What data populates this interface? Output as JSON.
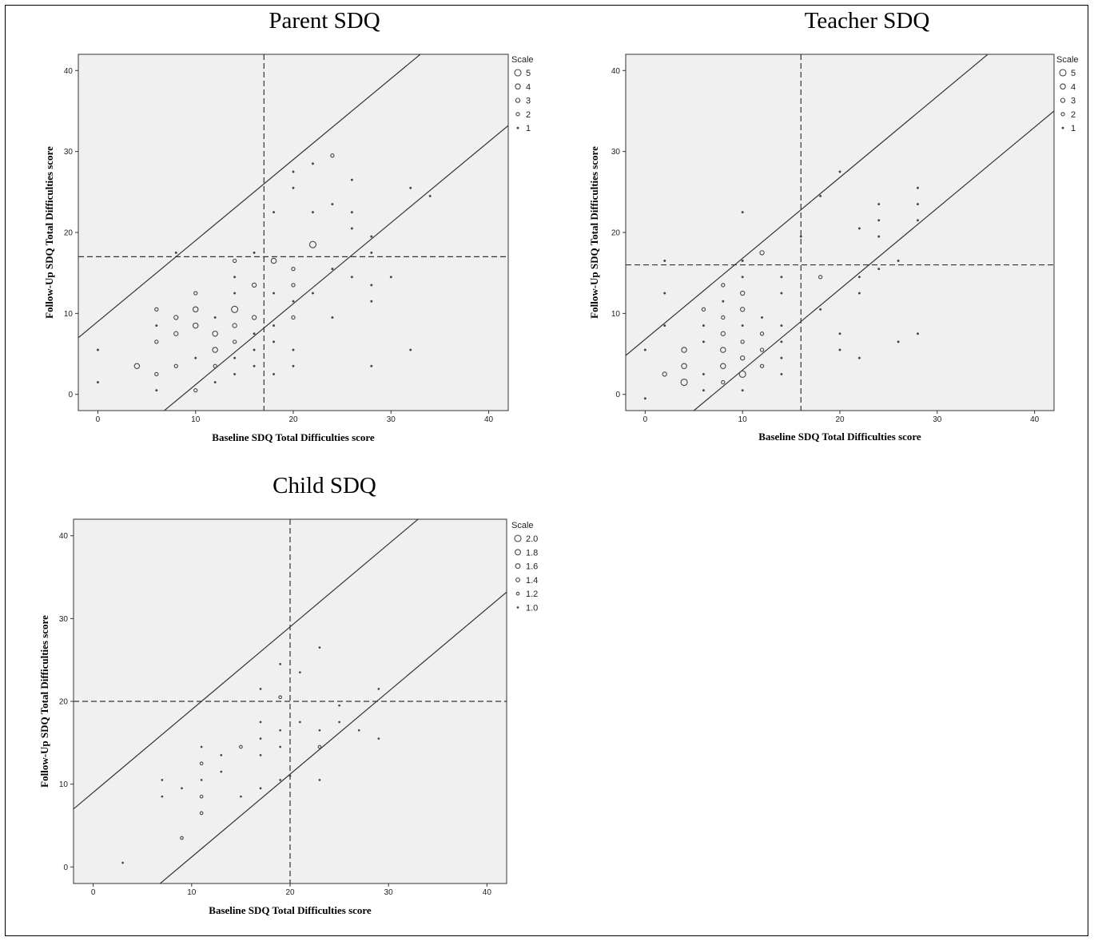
{
  "chart_data": [
    {
      "type": "scatter",
      "title": "Parent SDQ",
      "xlabel": "Baseline SDQ Total Difficulties score",
      "ylabel": "Follow-Up SDQ Total Difficulties score",
      "xlim": [
        -2,
        42
      ],
      "ylim": [
        -2,
        42
      ],
      "xticks": [
        0,
        10,
        20,
        30,
        40
      ],
      "yticks": [
        0,
        10,
        20,
        30,
        40
      ],
      "reference_lines": {
        "x": 17,
        "y": 17,
        "style": "dashed"
      },
      "limit_lines": [
        {
          "slope": 1,
          "intercept": 9
        },
        {
          "slope": 1,
          "intercept": -8.8
        }
      ],
      "legend": {
        "title": "Scale",
        "placement": "right",
        "labels": [
          "5",
          "4",
          "3",
          "2",
          "1"
        ]
      },
      "points": [
        {
          "x": 0,
          "y": 5.5,
          "scale": 1
        },
        {
          "x": 0,
          "y": 1.5,
          "scale": 1
        },
        {
          "x": 4,
          "y": 3.5,
          "scale": 4
        },
        {
          "x": 6,
          "y": 10.5,
          "scale": 2
        },
        {
          "x": 6,
          "y": 8.5,
          "scale": 1
        },
        {
          "x": 6,
          "y": 6.5,
          "scale": 2
        },
        {
          "x": 6,
          "y": 2.5,
          "scale": 2
        },
        {
          "x": 6,
          "y": 0.5,
          "scale": 1
        },
        {
          "x": 8,
          "y": 17.5,
          "scale": 1
        },
        {
          "x": 8,
          "y": 9.5,
          "scale": 3
        },
        {
          "x": 8,
          "y": 7.5,
          "scale": 3
        },
        {
          "x": 8,
          "y": 3.5,
          "scale": 2
        },
        {
          "x": 10,
          "y": 12.5,
          "scale": 2
        },
        {
          "x": 10,
          "y": 10.5,
          "scale": 4
        },
        {
          "x": 10,
          "y": 8.5,
          "scale": 4
        },
        {
          "x": 10,
          "y": 4.5,
          "scale": 1
        },
        {
          "x": 10,
          "y": 0.5,
          "scale": 2
        },
        {
          "x": 12,
          "y": 9.5,
          "scale": 1
        },
        {
          "x": 12,
          "y": 7.5,
          "scale": 4
        },
        {
          "x": 12,
          "y": 5.5,
          "scale": 4
        },
        {
          "x": 12,
          "y": 3.5,
          "scale": 2
        },
        {
          "x": 12,
          "y": 1.5,
          "scale": 1
        },
        {
          "x": 14,
          "y": 16.5,
          "scale": 2
        },
        {
          "x": 14,
          "y": 14.5,
          "scale": 1
        },
        {
          "x": 14,
          "y": 12.5,
          "scale": 1
        },
        {
          "x": 14,
          "y": 10.5,
          "scale": 5
        },
        {
          "x": 14,
          "y": 8.5,
          "scale": 3
        },
        {
          "x": 14,
          "y": 6.5,
          "scale": 2
        },
        {
          "x": 14,
          "y": 4.5,
          "scale": 1
        },
        {
          "x": 14,
          "y": 2.5,
          "scale": 1
        },
        {
          "x": 16,
          "y": 17.5,
          "scale": 1
        },
        {
          "x": 16,
          "y": 13.5,
          "scale": 3
        },
        {
          "x": 16,
          "y": 9.5,
          "scale": 3
        },
        {
          "x": 16,
          "y": 7.5,
          "scale": 1
        },
        {
          "x": 16,
          "y": 5.5,
          "scale": 1
        },
        {
          "x": 16,
          "y": 3.5,
          "scale": 1
        },
        {
          "x": 18,
          "y": 22.5,
          "scale": 1
        },
        {
          "x": 18,
          "y": 16.5,
          "scale": 4
        },
        {
          "x": 18,
          "y": 12.5,
          "scale": 1
        },
        {
          "x": 18,
          "y": 8.5,
          "scale": 1
        },
        {
          "x": 18,
          "y": 6.5,
          "scale": 1
        },
        {
          "x": 18,
          "y": 2.5,
          "scale": 1
        },
        {
          "x": 20,
          "y": 27.5,
          "scale": 1
        },
        {
          "x": 20,
          "y": 25.5,
          "scale": 1
        },
        {
          "x": 20,
          "y": 15.5,
          "scale": 2
        },
        {
          "x": 20,
          "y": 13.5,
          "scale": 2
        },
        {
          "x": 20,
          "y": 11.5,
          "scale": 1
        },
        {
          "x": 20,
          "y": 9.5,
          "scale": 2
        },
        {
          "x": 20,
          "y": 5.5,
          "scale": 1
        },
        {
          "x": 20,
          "y": 3.5,
          "scale": 1
        },
        {
          "x": 22,
          "y": 28.5,
          "scale": 1
        },
        {
          "x": 22,
          "y": 22.5,
          "scale": 1
        },
        {
          "x": 22,
          "y": 18.5,
          "scale": 5
        },
        {
          "x": 22,
          "y": 12.5,
          "scale": 1
        },
        {
          "x": 24,
          "y": 29.5,
          "scale": 2
        },
        {
          "x": 24,
          "y": 23.5,
          "scale": 1
        },
        {
          "x": 24,
          "y": 15.5,
          "scale": 1
        },
        {
          "x": 24,
          "y": 9.5,
          "scale": 1
        },
        {
          "x": 26,
          "y": 26.5,
          "scale": 1
        },
        {
          "x": 26,
          "y": 22.5,
          "scale": 1
        },
        {
          "x": 26,
          "y": 20.5,
          "scale": 1
        },
        {
          "x": 26,
          "y": 14.5,
          "scale": 1
        },
        {
          "x": 28,
          "y": 19.5,
          "scale": 1
        },
        {
          "x": 28,
          "y": 17.5,
          "scale": 1
        },
        {
          "x": 28,
          "y": 13.5,
          "scale": 1
        },
        {
          "x": 28,
          "y": 11.5,
          "scale": 1
        },
        {
          "x": 28,
          "y": 3.5,
          "scale": 1
        },
        {
          "x": 30,
          "y": 14.5,
          "scale": 1
        },
        {
          "x": 32,
          "y": 25.5,
          "scale": 1
        },
        {
          "x": 32,
          "y": 5.5,
          "scale": 1
        },
        {
          "x": 34,
          "y": 24.5,
          "scale": 1
        }
      ]
    },
    {
      "type": "scatter",
      "title": "Teacher SDQ",
      "xlabel": "Baseline SDQ Total Difficulties score",
      "ylabel": "Follow-Up SDQ Total Difficulties score",
      "xlim": [
        -2,
        42
      ],
      "ylim": [
        -2,
        42
      ],
      "xticks": [
        0,
        10,
        20,
        30,
        40
      ],
      "yticks": [
        0,
        10,
        20,
        30,
        40
      ],
      "reference_lines": {
        "x": 16,
        "y": 16,
        "style": "dashed"
      },
      "limit_lines": [
        {
          "slope": 1,
          "intercept": 6.8
        },
        {
          "slope": 1,
          "intercept": -7
        }
      ],
      "legend": {
        "title": "Scale",
        "placement": "right",
        "labels": [
          "5",
          "4",
          "3",
          "2",
          "1"
        ]
      },
      "points": [
        {
          "x": 0,
          "y": 5.5,
          "scale": 1
        },
        {
          "x": 0,
          "y": -0.5,
          "scale": 1
        },
        {
          "x": 2,
          "y": 16.5,
          "scale": 1
        },
        {
          "x": 2,
          "y": 12.5,
          "scale": 1
        },
        {
          "x": 2,
          "y": 8.5,
          "scale": 1
        },
        {
          "x": 2,
          "y": 2.5,
          "scale": 3
        },
        {
          "x": 4,
          "y": 5.5,
          "scale": 4
        },
        {
          "x": 4,
          "y": 3.5,
          "scale": 4
        },
        {
          "x": 4,
          "y": 1.5,
          "scale": 5
        },
        {
          "x": 6,
          "y": 10.5,
          "scale": 2
        },
        {
          "x": 6,
          "y": 8.5,
          "scale": 1
        },
        {
          "x": 6,
          "y": 6.5,
          "scale": 1
        },
        {
          "x": 6,
          "y": 2.5,
          "scale": 1
        },
        {
          "x": 6,
          "y": 0.5,
          "scale": 1
        },
        {
          "x": 8,
          "y": 13.5,
          "scale": 2
        },
        {
          "x": 8,
          "y": 11.5,
          "scale": 1
        },
        {
          "x": 8,
          "y": 9.5,
          "scale": 2
        },
        {
          "x": 8,
          "y": 7.5,
          "scale": 3
        },
        {
          "x": 8,
          "y": 5.5,
          "scale": 4
        },
        {
          "x": 8,
          "y": 3.5,
          "scale": 4
        },
        {
          "x": 8,
          "y": 1.5,
          "scale": 2
        },
        {
          "x": 10,
          "y": 22.5,
          "scale": 1
        },
        {
          "x": 10,
          "y": 16.5,
          "scale": 1
        },
        {
          "x": 10,
          "y": 14.5,
          "scale": 1
        },
        {
          "x": 10,
          "y": 12.5,
          "scale": 3
        },
        {
          "x": 10,
          "y": 10.5,
          "scale": 3
        },
        {
          "x": 10,
          "y": 8.5,
          "scale": 1
        },
        {
          "x": 10,
          "y": 6.5,
          "scale": 2
        },
        {
          "x": 10,
          "y": 4.5,
          "scale": 3
        },
        {
          "x": 10,
          "y": 2.5,
          "scale": 5
        },
        {
          "x": 10,
          "y": 0.5,
          "scale": 1
        },
        {
          "x": 12,
          "y": 17.5,
          "scale": 3
        },
        {
          "x": 12,
          "y": 9.5,
          "scale": 1
        },
        {
          "x": 12,
          "y": 7.5,
          "scale": 2
        },
        {
          "x": 12,
          "y": 5.5,
          "scale": 2
        },
        {
          "x": 12,
          "y": 3.5,
          "scale": 2
        },
        {
          "x": 14,
          "y": 14.5,
          "scale": 1
        },
        {
          "x": 14,
          "y": 12.5,
          "scale": 1
        },
        {
          "x": 14,
          "y": 8.5,
          "scale": 1
        },
        {
          "x": 14,
          "y": 6.5,
          "scale": 1
        },
        {
          "x": 14,
          "y": 4.5,
          "scale": 1
        },
        {
          "x": 14,
          "y": 2.5,
          "scale": 1
        },
        {
          "x": 16,
          "y": 19.5,
          "scale": 1
        },
        {
          "x": 18,
          "y": 24.5,
          "scale": 1
        },
        {
          "x": 18,
          "y": 14.5,
          "scale": 2
        },
        {
          "x": 18,
          "y": 10.5,
          "scale": 1
        },
        {
          "x": 20,
          "y": 27.5,
          "scale": 1
        },
        {
          "x": 20,
          "y": 7.5,
          "scale": 1
        },
        {
          "x": 20,
          "y": 5.5,
          "scale": 1
        },
        {
          "x": 22,
          "y": 20.5,
          "scale": 1
        },
        {
          "x": 22,
          "y": 14.5,
          "scale": 1
        },
        {
          "x": 22,
          "y": 12.5,
          "scale": 1
        },
        {
          "x": 22,
          "y": 4.5,
          "scale": 1
        },
        {
          "x": 24,
          "y": 23.5,
          "scale": 1
        },
        {
          "x": 24,
          "y": 21.5,
          "scale": 1
        },
        {
          "x": 24,
          "y": 19.5,
          "scale": 1
        },
        {
          "x": 24,
          "y": 15.5,
          "scale": 1
        },
        {
          "x": 26,
          "y": 16.5,
          "scale": 1
        },
        {
          "x": 26,
          "y": 6.5,
          "scale": 1
        },
        {
          "x": 28,
          "y": 25.5,
          "scale": 1
        },
        {
          "x": 28,
          "y": 23.5,
          "scale": 1
        },
        {
          "x": 28,
          "y": 21.5,
          "scale": 1
        },
        {
          "x": 28,
          "y": 7.5,
          "scale": 1
        }
      ]
    },
    {
      "type": "scatter",
      "title": "Child SDQ",
      "xlabel": "Baseline SDQ Total Difficulties score",
      "ylabel": "Follow-Up SDQ Total Difficulties score",
      "xlim": [
        -2,
        42
      ],
      "ylim": [
        -2,
        42
      ],
      "xticks": [
        0,
        10,
        20,
        30,
        40
      ],
      "yticks": [
        0,
        10,
        20,
        30,
        40
      ],
      "reference_lines": {
        "x": 20,
        "y": 20,
        "style": "dashed"
      },
      "limit_lines": [
        {
          "slope": 1,
          "intercept": 9
        },
        {
          "slope": 1,
          "intercept": -8.8
        }
      ],
      "legend": {
        "title": "Scale",
        "placement": "right",
        "labels": [
          "2.0",
          "1.8",
          "1.6",
          "1.4",
          "1.2",
          "1.0"
        ]
      },
      "points": [
        {
          "x": 3,
          "y": 0.5,
          "scale": 1
        },
        {
          "x": 7,
          "y": 10.5,
          "scale": 1
        },
        {
          "x": 7,
          "y": 8.5,
          "scale": 1
        },
        {
          "x": 9,
          "y": 9.5,
          "scale": 1
        },
        {
          "x": 9,
          "y": 3.5,
          "scale": 2
        },
        {
          "x": 11,
          "y": 14.5,
          "scale": 1
        },
        {
          "x": 11,
          "y": 12.5,
          "scale": 2
        },
        {
          "x": 11,
          "y": 10.5,
          "scale": 1
        },
        {
          "x": 11,
          "y": 8.5,
          "scale": 2
        },
        {
          "x": 11,
          "y": 6.5,
          "scale": 2
        },
        {
          "x": 13,
          "y": 13.5,
          "scale": 1
        },
        {
          "x": 13,
          "y": 11.5,
          "scale": 1
        },
        {
          "x": 15,
          "y": 14.5,
          "scale": 2
        },
        {
          "x": 15,
          "y": 8.5,
          "scale": 1
        },
        {
          "x": 17,
          "y": 21.5,
          "scale": 1
        },
        {
          "x": 17,
          "y": 17.5,
          "scale": 1
        },
        {
          "x": 17,
          "y": 15.5,
          "scale": 1
        },
        {
          "x": 17,
          "y": 13.5,
          "scale": 1
        },
        {
          "x": 17,
          "y": 9.5,
          "scale": 1
        },
        {
          "x": 19,
          "y": 24.5,
          "scale": 1
        },
        {
          "x": 19,
          "y": 20.5,
          "scale": 2
        },
        {
          "x": 19,
          "y": 16.5,
          "scale": 1
        },
        {
          "x": 19,
          "y": 14.5,
          "scale": 1
        },
        {
          "x": 19,
          "y": 10.5,
          "scale": 1
        },
        {
          "x": 20,
          "y": 11,
          "scale": 1
        },
        {
          "x": 21,
          "y": 23.5,
          "scale": 1
        },
        {
          "x": 21,
          "y": 17.5,
          "scale": 1
        },
        {
          "x": 23,
          "y": 26.5,
          "scale": 1
        },
        {
          "x": 23,
          "y": 16.5,
          "scale": 1
        },
        {
          "x": 23,
          "y": 14.5,
          "scale": 2
        },
        {
          "x": 23,
          "y": 10.5,
          "scale": 1
        },
        {
          "x": 25,
          "y": 19.5,
          "scale": 1
        },
        {
          "x": 25,
          "y": 17.5,
          "scale": 1
        },
        {
          "x": 27,
          "y": 16.5,
          "scale": 1
        },
        {
          "x": 29,
          "y": 21.5,
          "scale": 1
        },
        {
          "x": 29,
          "y": 15.5,
          "scale": 1
        }
      ]
    }
  ]
}
